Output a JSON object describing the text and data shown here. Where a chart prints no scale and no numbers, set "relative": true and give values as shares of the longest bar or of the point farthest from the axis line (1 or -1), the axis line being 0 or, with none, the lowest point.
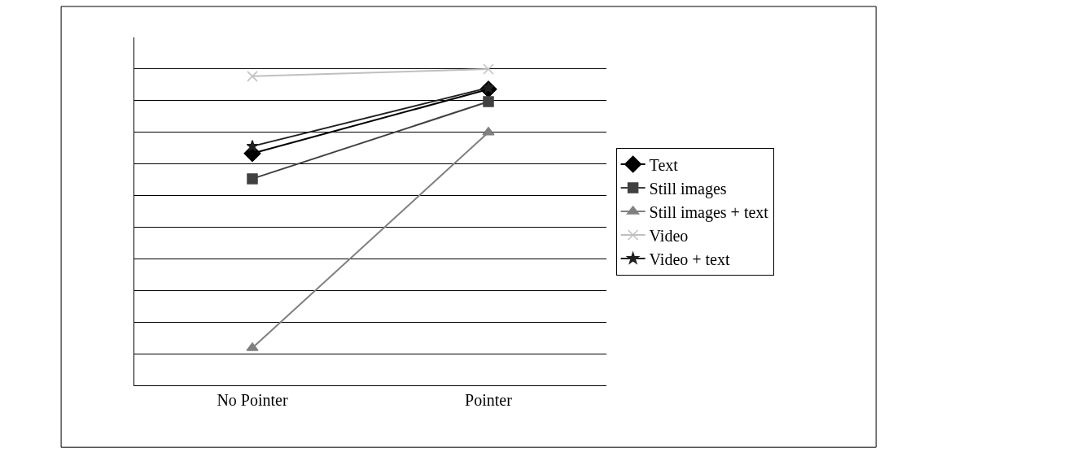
{
  "chart_data": {
    "type": "line",
    "relative": true,
    "categories": [
      "No Pointer",
      "Pointer"
    ],
    "grid": "y",
    "legend": "right",
    "series": [
      {
        "name": "Text",
        "color": "#000000",
        "marker": "diamond",
        "values": [
          0.733,
          0.936
        ]
      },
      {
        "name": "Still images",
        "color": "#404040",
        "marker": "square",
        "values": [
          0.653,
          0.897
        ]
      },
      {
        "name": "Still images + text",
        "color": "#808080",
        "marker": "triangle",
        "values": [
          0.118,
          0.8
        ]
      },
      {
        "name": "Video",
        "color": "#c0c0c0",
        "marker": "cross",
        "values": [
          0.977,
          1
        ]
      },
      {
        "name": "Video + text",
        "color": "#202020",
        "marker": "star",
        "values": [
          0.756,
          0.941
        ]
      }
    ]
  }
}
